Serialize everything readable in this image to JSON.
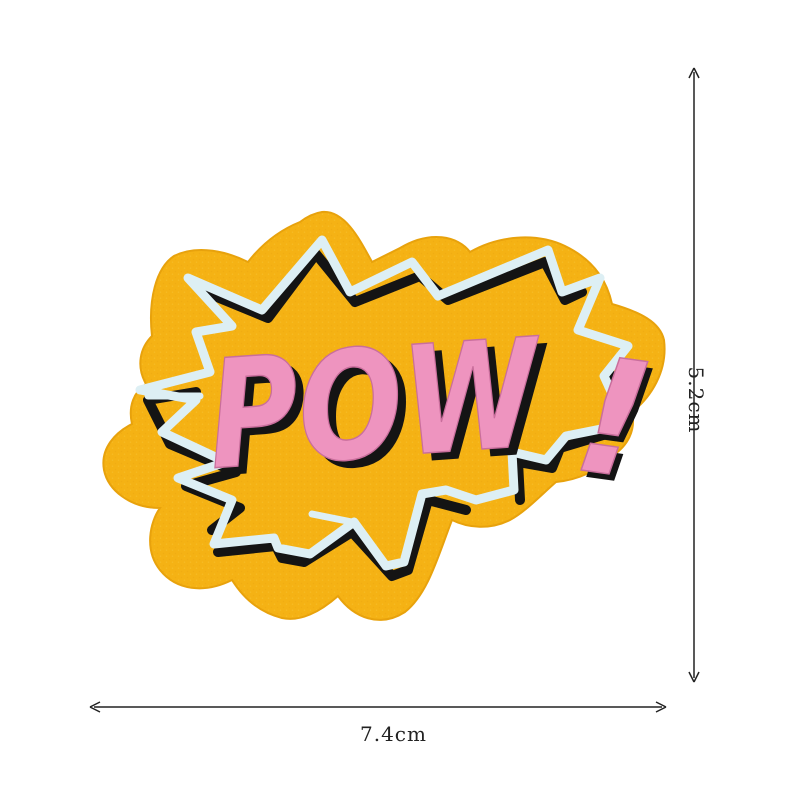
{
  "patch": {
    "word": "POW",
    "exclamation": "!",
    "icon": "comic-burst-embroidered-patch"
  },
  "dimensions": {
    "width_label": "7.4cm",
    "height_label": "5.2cm"
  },
  "colors": {
    "felt": "#F5B214",
    "felt_edge": "#E8A20C",
    "burst_outline": "#DDEFF4",
    "shadow": "#141414",
    "letters": "#EE94BF",
    "letters_dark": "#C96E9C",
    "arrow": "#222222"
  }
}
